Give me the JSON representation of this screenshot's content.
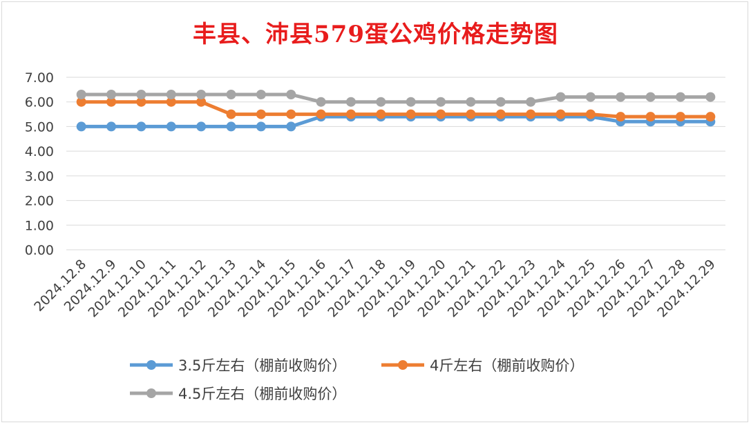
{
  "chart_data": {
    "type": "line",
    "title": "丰县、沛县579蛋公鸡价格走势图",
    "categories": [
      "2024.12.8",
      "2024.12.9",
      "2024.12.10",
      "2024.12.11",
      "2024.12.12",
      "2024.12.13",
      "2024.12.14",
      "2024.12.15",
      "2024.12.16",
      "2024.12.17",
      "2024.12.18",
      "2024.12.19",
      "2024.12.20",
      "2024.12.21",
      "2024.12.22",
      "2024.12.23",
      "2024.12.24",
      "2024.12.25",
      "2024.12.26",
      "2024.12.27",
      "2024.12.28",
      "2024.12.29"
    ],
    "y_ticks": [
      "0.00",
      "1.00",
      "2.00",
      "3.00",
      "4.00",
      "5.00",
      "6.00",
      "7.00"
    ],
    "ylim": [
      0,
      7
    ],
    "grid": true,
    "legend_position": "bottom",
    "series": [
      {
        "name": "3.5斤左右（棚前收购价）",
        "color": "#5b9bd5",
        "values": [
          5.0,
          5.0,
          5.0,
          5.0,
          5.0,
          5.0,
          5.0,
          5.0,
          5.4,
          5.4,
          5.4,
          5.4,
          5.4,
          5.4,
          5.4,
          5.4,
          5.4,
          5.4,
          5.2,
          5.2,
          5.2,
          5.2
        ]
      },
      {
        "name": "4斤左右（棚前收购价）",
        "color": "#ed7d31",
        "values": [
          6.0,
          6.0,
          6.0,
          6.0,
          6.0,
          5.5,
          5.5,
          5.5,
          5.5,
          5.5,
          5.5,
          5.5,
          5.5,
          5.5,
          5.5,
          5.5,
          5.5,
          5.5,
          5.4,
          5.4,
          5.4,
          5.4
        ]
      },
      {
        "name": "4.5斤左右（棚前收购价）",
        "color": "#a5a5a5",
        "values": [
          6.3,
          6.3,
          6.3,
          6.3,
          6.3,
          6.3,
          6.3,
          6.3,
          6.0,
          6.0,
          6.0,
          6.0,
          6.0,
          6.0,
          6.0,
          6.0,
          6.2,
          6.2,
          6.2,
          6.2,
          6.2,
          6.2
        ]
      }
    ]
  }
}
